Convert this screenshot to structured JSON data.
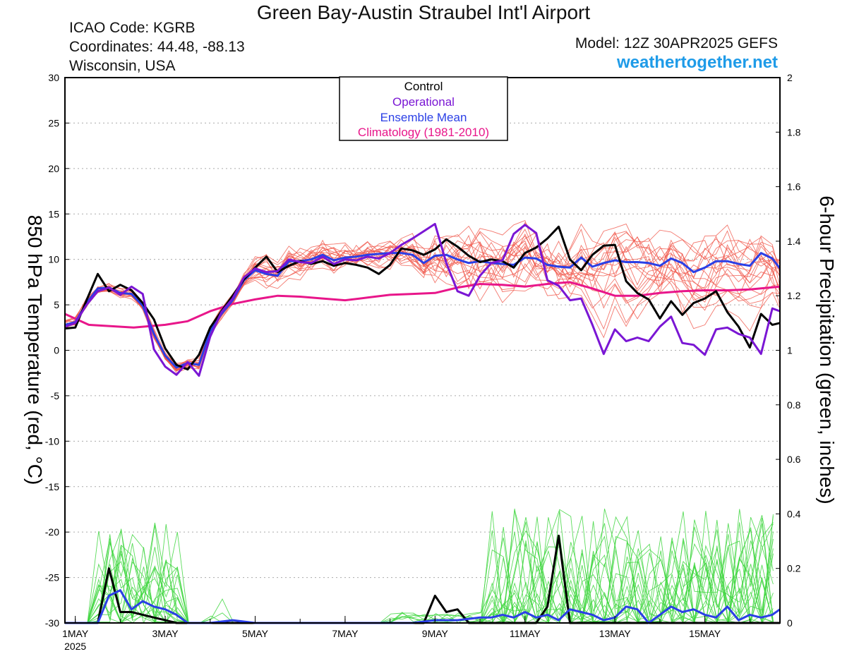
{
  "header": {
    "title": "Green Bay-Austin Straubel Int'l Airport",
    "icao": "ICAO Code: KGRB",
    "coords": "Coordinates: 44.48, -88.13",
    "region": "Wisconsin, USA",
    "model": "Model: 12Z 30APR2025 GEFS",
    "site": "weathertogether.net"
  },
  "colors": {
    "control": "#000000",
    "operational": "#7a16d4",
    "ensemble_mean": "#2a3fe6",
    "climatology": "#e8168a",
    "members_temp": "#f0564a",
    "members_precip": "#3ed63e",
    "site": "#1e9be8"
  },
  "chart_data": {
    "type": "line",
    "xlabel": "",
    "ylabel_left": "850 hPa Temperature (red, °C)",
    "ylabel_right": "6-hour Precipitation (green, inches)",
    "x_range_days": [
      0.77,
      16.67
    ],
    "x_tick_days": [
      1,
      3,
      5,
      7,
      9,
      11,
      13,
      15
    ],
    "x_tick_labels": [
      "1MAY",
      "3MAY",
      "5MAY",
      "7MAY",
      "9MAY",
      "11MAY",
      "13MAY",
      "15MAY"
    ],
    "x_year_label": "2025",
    "ylim_left": [
      -30,
      30
    ],
    "yticks_left": [
      30,
      25,
      20,
      15,
      10,
      5,
      0,
      -5,
      -10,
      -15,
      -20,
      -25,
      -30
    ],
    "ylim_right": [
      0,
      2
    ],
    "yticks_right": [
      "2",
      "1.8",
      "1.6",
      "1.4",
      "1.2",
      "1",
      "0.8",
      "0.6",
      "0.4",
      "0.2",
      "0"
    ],
    "legend": {
      "placement": "top-center",
      "entries": [
        "Control",
        "Operational",
        "Ensemble Mean",
        "Climatology (1981-2010)"
      ]
    },
    "series": [
      {
        "name": "Control",
        "axis": "left",
        "x": [
          0.77,
          1.0,
          1.25,
          1.5,
          1.75,
          2.0,
          2.25,
          2.5,
          2.75,
          3.0,
          3.25,
          3.5,
          3.75,
          4.0,
          4.25,
          4.5,
          4.75,
          5.0,
          5.25,
          5.5,
          5.75,
          6.0,
          6.25,
          6.5,
          6.75,
          7.0,
          7.25,
          7.5,
          7.75,
          8.0,
          8.25,
          8.5,
          8.75,
          9.0,
          9.25,
          9.5,
          9.75,
          10.0,
          10.25,
          10.5,
          10.75,
          11.0,
          11.25,
          11.5,
          11.75,
          12.0,
          12.25,
          12.5,
          12.75,
          13.0,
          13.25,
          13.5,
          13.75,
          14.0,
          14.25,
          14.5,
          14.75,
          15.0,
          15.25,
          15.5,
          15.75,
          16.0,
          16.25,
          16.5,
          16.67
        ],
        "y": [
          2.4,
          2.5,
          5.5,
          8.4,
          6.5,
          7.2,
          6.6,
          5.2,
          3.4,
          0.2,
          -1.6,
          -2.1,
          -0.5,
          2.5,
          4.3,
          6.0,
          7.8,
          9.1,
          10.3,
          8.6,
          9.3,
          9.8,
          9.5,
          9.8,
          9.3,
          9.6,
          9.4,
          9.1,
          8.4,
          9.4,
          11.2,
          11.0,
          10.5,
          11.1,
          12.2,
          11.4,
          10.4,
          9.7,
          10.0,
          9.8,
          9.1,
          10.7,
          11.3,
          12.3,
          13.6,
          10.0,
          8.8,
          10.5,
          11.5,
          11.6,
          7.6,
          6.3,
          5.6,
          3.5,
          5.4,
          3.9,
          5.2,
          5.7,
          6.5,
          4.2,
          2.6,
          0.3,
          4.0,
          2.8,
          3.0
        ]
      },
      {
        "name": "Operational",
        "axis": "left",
        "x": [
          0.77,
          1.0,
          1.25,
          1.5,
          1.75,
          2.0,
          2.25,
          2.5,
          2.75,
          3.0,
          3.25,
          3.5,
          3.75,
          4.0,
          4.25,
          4.5,
          4.75,
          5.0,
          5.25,
          5.5,
          5.75,
          6.0,
          6.25,
          6.5,
          6.75,
          7.0,
          7.25,
          7.5,
          7.75,
          8.0,
          8.25,
          8.5,
          8.75,
          9.0,
          9.25,
          9.5,
          9.75,
          10.0,
          10.25,
          10.5,
          10.75,
          11.0,
          11.25,
          11.5,
          11.75,
          12.0,
          12.25,
          12.5,
          12.75,
          13.0,
          13.25,
          13.5,
          13.75,
          14.0,
          14.25,
          14.5,
          14.75,
          15.0,
          15.25,
          15.5,
          15.75,
          16.0,
          16.25,
          16.5,
          16.67
        ],
        "y": [
          2.6,
          3.0,
          5.0,
          6.5,
          6.9,
          6.1,
          7.0,
          6.2,
          0.1,
          -1.8,
          -2.7,
          -1.3,
          -2.8,
          1.5,
          4.2,
          5.7,
          8.0,
          9.0,
          8.6,
          8.7,
          10.0,
          9.7,
          9.6,
          10.3,
          9.5,
          10.0,
          9.9,
          10.3,
          10.1,
          10.7,
          11.6,
          12.3,
          13.1,
          13.9,
          9.6,
          6.5,
          6.0,
          8.2,
          9.6,
          9.9,
          12.8,
          13.8,
          12.9,
          7.7,
          7.1,
          5.5,
          5.7,
          2.8,
          -0.4,
          2.3,
          1.0,
          1.4,
          1.0,
          2.6,
          3.7,
          0.8,
          0.6,
          -0.5,
          2.3,
          2.5,
          1.8,
          1.4,
          -0.4,
          4.6,
          4.3
        ]
      },
      {
        "name": "Ensemble Mean",
        "axis": "left",
        "x": [
          0.77,
          1.0,
          1.25,
          1.5,
          1.75,
          2.0,
          2.25,
          2.5,
          2.75,
          3.0,
          3.25,
          3.5,
          3.75,
          4.0,
          4.25,
          4.5,
          4.75,
          5.0,
          5.25,
          5.5,
          5.75,
          6.0,
          6.25,
          6.5,
          6.75,
          7.0,
          7.25,
          7.5,
          7.75,
          8.0,
          8.25,
          8.5,
          8.75,
          9.0,
          9.25,
          9.5,
          9.75,
          10.0,
          10.25,
          10.5,
          10.75,
          11.0,
          11.25,
          11.5,
          11.75,
          12.0,
          12.25,
          12.5,
          12.75,
          13.0,
          13.25,
          13.5,
          13.75,
          14.0,
          14.25,
          14.5,
          14.75,
          15.0,
          15.25,
          15.5,
          15.75,
          16.0,
          16.25,
          16.5,
          16.67
        ],
        "y": [
          2.8,
          3.1,
          5.2,
          6.8,
          6.9,
          6.3,
          6.2,
          4.9,
          1.8,
          -0.6,
          -1.9,
          -1.4,
          -1.6,
          2.1,
          4.0,
          5.5,
          7.7,
          8.8,
          8.4,
          8.2,
          9.8,
          9.8,
          10.0,
          10.5,
          9.9,
          10.2,
          10.3,
          10.5,
          10.6,
          10.7,
          10.7,
          10.5,
          9.6,
          10.4,
          10.5,
          10.0,
          9.6,
          9.8,
          9.6,
          9.5,
          9.4,
          10.2,
          10.1,
          9.4,
          9.2,
          9.1,
          10.2,
          9.2,
          9.6,
          9.9,
          9.7,
          9.7,
          9.6,
          9.3,
          10.1,
          9.6,
          8.6,
          9.1,
          9.8,
          9.8,
          9.5,
          9.3,
          10.7,
          10.1,
          9.0
        ]
      },
      {
        "name": "Climatology (1981-2010)",
        "axis": "left",
        "x": [
          0.77,
          1.3,
          2.3,
          3.0,
          3.5,
          4.0,
          4.5,
          5.0,
          5.5,
          6.0,
          6.5,
          7.0,
          7.5,
          8.0,
          8.5,
          9.0,
          9.5,
          10.0,
          10.5,
          11.0,
          11.5,
          12.0,
          12.5,
          13.0,
          13.5,
          14.0,
          14.5,
          15.0,
          15.5,
          16.0,
          16.67
        ],
        "y": [
          4.0,
          2.8,
          2.5,
          2.8,
          3.2,
          4.3,
          5.1,
          5.6,
          6.0,
          5.9,
          5.7,
          5.5,
          5.8,
          6.1,
          6.2,
          6.3,
          6.9,
          7.3,
          7.2,
          7.0,
          7.3,
          7.5,
          6.8,
          6.0,
          6.0,
          6.3,
          6.5,
          6.6,
          6.6,
          6.7,
          7.0
        ]
      },
      {
        "name": "Control precipitation",
        "axis": "right",
        "x": [
          0.77,
          1.5,
          1.75,
          2.0,
          2.25,
          2.5,
          2.75,
          3.0,
          3.25,
          3.5,
          4.0,
          4.5,
          5.0,
          5.5,
          6.0,
          6.5,
          7.0,
          7.5,
          8.0,
          8.5,
          8.75,
          9.0,
          9.25,
          9.5,
          9.75,
          10.0,
          10.5,
          11.0,
          11.25,
          11.5,
          11.75,
          12.0,
          12.5,
          13.0,
          13.5,
          14.0,
          14.5,
          15.0,
          15.5,
          16.0,
          16.67
        ],
        "y": [
          0,
          0,
          0.2,
          0.04,
          0.04,
          0.03,
          0.02,
          0.01,
          0.0,
          0.0,
          0,
          0,
          0,
          0,
          0,
          0,
          0,
          0,
          0,
          0,
          0,
          0.1,
          0.04,
          0.05,
          0,
          0,
          0,
          0,
          0,
          0.06,
          0.32,
          0,
          0,
          0,
          0,
          0,
          0,
          0,
          0,
          0,
          0
        ]
      },
      {
        "name": "Ensemble Mean precipitation",
        "axis": "right",
        "x": [
          0.77,
          1.5,
          1.75,
          2.0,
          2.25,
          2.5,
          2.75,
          3.0,
          3.25,
          3.5,
          4.0,
          4.5,
          5.0,
          5.5,
          6.0,
          6.5,
          7.0,
          7.5,
          8.0,
          8.5,
          9.0,
          9.5,
          10.0,
          10.25,
          10.5,
          10.75,
          11.0,
          11.25,
          11.5,
          11.75,
          12.0,
          12.25,
          12.5,
          12.75,
          13.0,
          13.25,
          13.5,
          13.75,
          14.0,
          14.25,
          14.5,
          14.75,
          15.0,
          15.25,
          15.5,
          15.75,
          16.0,
          16.25,
          16.5,
          16.67
        ],
        "y": [
          0,
          0.0,
          0.1,
          0.12,
          0.05,
          0.08,
          0.06,
          0.05,
          0.03,
          0.0,
          0.0,
          0.01,
          0.0,
          0,
          0,
          0,
          0,
          0,
          0,
          0,
          0.01,
          0.01,
          0.02,
          0.02,
          0.03,
          0.02,
          0.04,
          0.02,
          0.03,
          0.01,
          0.05,
          0.04,
          0.03,
          0.01,
          0.02,
          0.06,
          0.05,
          0.0,
          0.03,
          0.06,
          0.04,
          0.05,
          0.03,
          0.02,
          0.06,
          0.01,
          0.03,
          0.02,
          0.03,
          0.05
        ]
      }
    ]
  }
}
